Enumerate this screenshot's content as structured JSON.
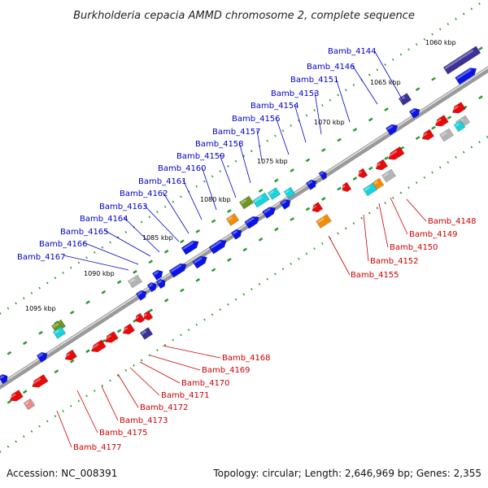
{
  "title": "Burkholderia cepacia AMMD chromosome 2, complete sequence",
  "footer": {
    "accession": "Accession: NC_008391",
    "summary": "Topology: circular; Length: 2,646,969 bp; Genes: 2,355"
  },
  "colors": {
    "forward": "#0a14e6",
    "reverse": "#e60a0a",
    "cyan": "#19d2dc",
    "orange": "#f08c0a",
    "olive": "#6e961e",
    "gray": "#b4b4b4",
    "navy": "#3c3296",
    "pink": "#e68c8c",
    "backbone": "#8c8c8c",
    "dots": "#2b9a2b",
    "blue_label": "#0000cc",
    "red_label": "#cc0000"
  },
  "kbp_labels": [
    "1060 kbp",
    "1065 kbp",
    "1070 kbp",
    "1075 kbp",
    "1080 kbp",
    "1085 kbp",
    "1090 kbp",
    "1095 kbp"
  ],
  "upper_labels": [
    "Bamb_4144",
    "Bamb_4146",
    "Bamb_4151",
    "Bamb_4153",
    "Bamb_4154",
    "Bamb_4156",
    "Bamb_4157",
    "Bamb_4158",
    "Bamb_4159",
    "Bamb_4160",
    "Bamb_4161",
    "Bamb_4162",
    "Bamb_4163",
    "Bamb_4164",
    "Bamb_4165",
    "Bamb_4166",
    "Bamb_4167"
  ],
  "lower_labels": [
    "Bamb_4148",
    "Bamb_4149",
    "Bamb_4150",
    "Bamb_4152",
    "Bamb_4155",
    "Bamb_4168",
    "Bamb_4169",
    "Bamb_4170",
    "Bamb_4171",
    "Bamb_4172",
    "Bamb_4173",
    "Bamb_4175",
    "Bamb_4177"
  ]
}
